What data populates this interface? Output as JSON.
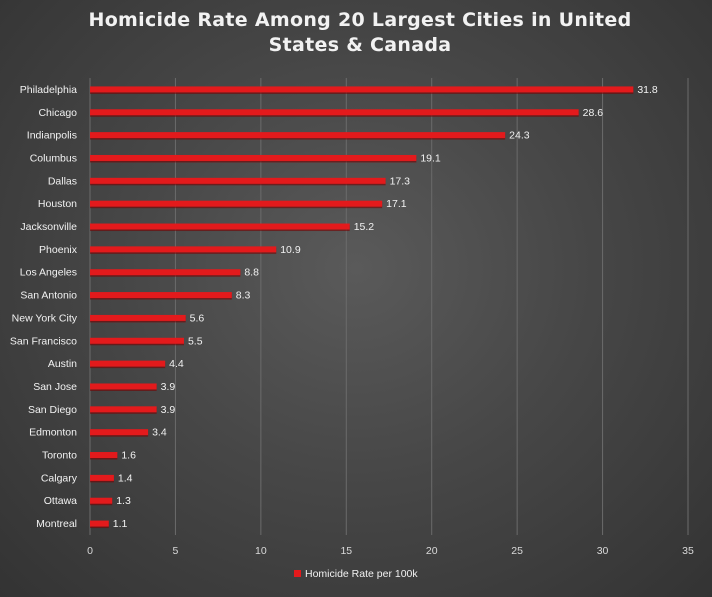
{
  "chart_data": {
    "type": "bar",
    "orientation": "horizontal",
    "title": "Homicide Rate Among 20 Largest Cities in United States & Canada",
    "categories": [
      "Philadelphia",
      "Chicago",
      "Indianpolis",
      "Columbus",
      "Dallas",
      "Houston",
      "Jacksonville",
      "Phoenix",
      "Los Angeles",
      "San Antonio",
      "New York City",
      "San Francisco",
      "Austin",
      "San Jose",
      "San Diego",
      "Edmonton",
      "Toronto",
      "Calgary",
      "Ottawa",
      "Montreal"
    ],
    "series": [
      {
        "name": "Homicide Rate per 100k",
        "values": [
          31.8,
          28.6,
          24.3,
          19.1,
          17.3,
          17.1,
          15.2,
          10.9,
          8.8,
          8.3,
          5.6,
          5.5,
          4.4,
          3.9,
          3.9,
          3.4,
          1.6,
          1.4,
          1.3,
          1.1
        ],
        "value_labels": [
          "31.8",
          "28.6",
          "24.3",
          "19.1",
          "17.3",
          "17.1",
          "15.2",
          "10.9",
          "8.8",
          "8.3",
          "5.6",
          "5.5",
          "4.4",
          "3.9",
          "3.9",
          "3.4",
          "1.6",
          "1.4",
          "1.3",
          "1.1"
        ]
      }
    ],
    "xlim": [
      0,
      35
    ],
    "xticks": [
      0,
      5,
      10,
      15,
      20,
      25,
      30,
      35
    ],
    "xtick_labels": [
      "0",
      "5",
      "10",
      "15",
      "20",
      "25",
      "30",
      "35"
    ],
    "grid": "vertical",
    "legend": "bottom",
    "colors": {
      "bar": "#e31a1c",
      "bar_shadow": "#7a0000",
      "text": "#f2f2f2",
      "grid": "#6b6b6b",
      "background": "#474747"
    }
  }
}
